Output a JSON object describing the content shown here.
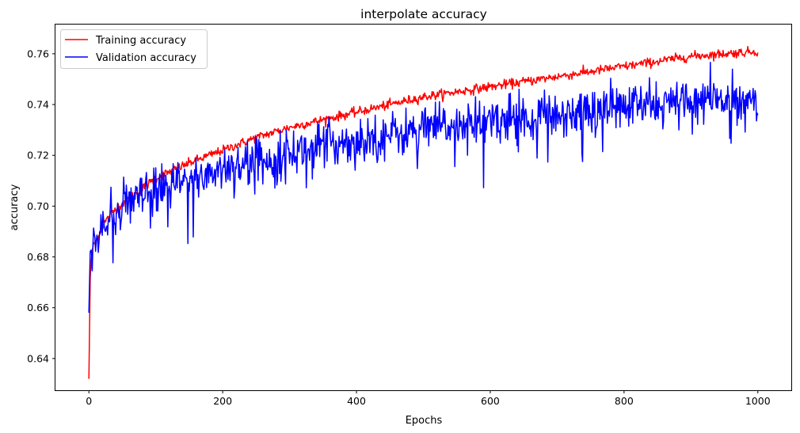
{
  "chart_data": {
    "type": "line",
    "title": "interpolate accuracy",
    "xlabel": "Epochs",
    "ylabel": "accuracy",
    "xlim": [
      -50,
      1050
    ],
    "ylim": [
      0.6275,
      0.7715
    ],
    "x_ticks": [
      0,
      200,
      400,
      600,
      800,
      1000
    ],
    "x_tick_labels": [
      "0",
      "200",
      "400",
      "600",
      "800",
      "1000"
    ],
    "y_ticks": [
      0.64,
      0.66,
      0.68,
      0.7,
      0.72,
      0.74,
      0.76
    ],
    "y_tick_labels": [
      "0.64",
      "0.66",
      "0.68",
      "0.70",
      "0.72",
      "0.74",
      "0.76"
    ],
    "grid": false,
    "legend_position": "top-left",
    "series": [
      {
        "name": "Training accuracy",
        "color": "#ff0000",
        "x": [
          0,
          2,
          4,
          6,
          8,
          10,
          15,
          20,
          30,
          40,
          50,
          75,
          100,
          150,
          200,
          250,
          300,
          350,
          400,
          450,
          500,
          550,
          600,
          650,
          700,
          750,
          800,
          850,
          900,
          950,
          1000
        ],
        "values": [
          0.632,
          0.672,
          0.68,
          0.684,
          0.685,
          0.686,
          0.689,
          0.692,
          0.696,
          0.699,
          0.701,
          0.706,
          0.711,
          0.717,
          0.722,
          0.727,
          0.731,
          0.734,
          0.737,
          0.74,
          0.743,
          0.745,
          0.747,
          0.749,
          0.751,
          0.753,
          0.755,
          0.757,
          0.759,
          0.76,
          0.761
        ]
      },
      {
        "name": "Validation accuracy",
        "color": "#0000ff",
        "x": [
          0,
          2,
          5,
          8,
          10,
          15,
          20,
          30,
          40,
          50,
          75,
          100,
          150,
          200,
          250,
          275,
          300,
          350,
          400,
          450,
          500,
          550,
          600,
          650,
          700,
          750,
          800,
          850,
          900,
          950,
          1000
        ],
        "values": [
          0.658,
          0.682,
          0.684,
          0.683,
          0.685,
          0.689,
          0.691,
          0.694,
          0.697,
          0.699,
          0.703,
          0.706,
          0.71,
          0.715,
          0.718,
          0.719,
          0.721,
          0.724,
          0.726,
          0.728,
          0.73,
          0.732,
          0.734,
          0.735,
          0.736,
          0.738,
          0.739,
          0.74,
          0.741,
          0.742,
          0.743
        ]
      }
    ]
  }
}
